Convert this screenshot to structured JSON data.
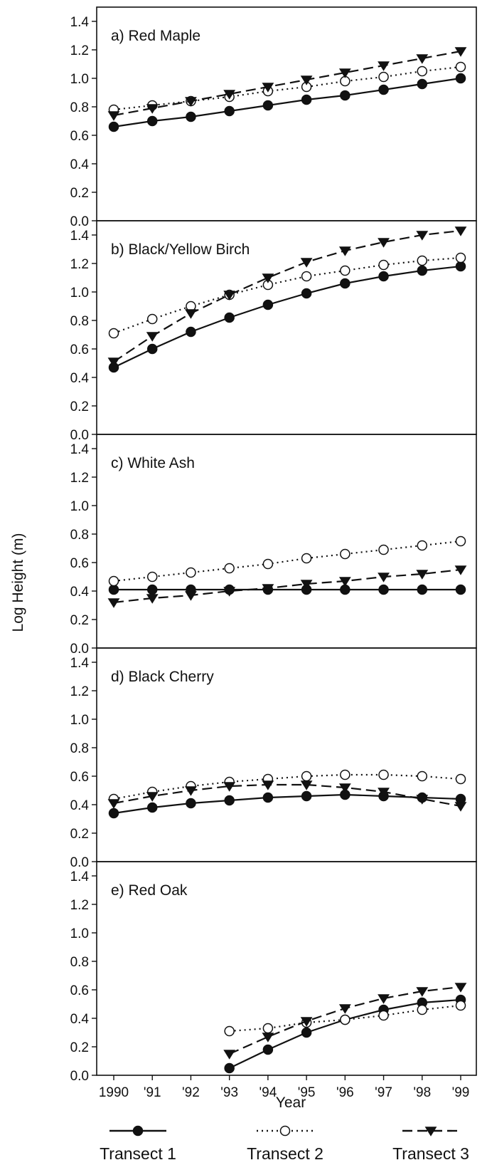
{
  "chart_data": {
    "type": "line",
    "ylabel": "Log Height (m)",
    "xlabel": "Year",
    "x": [
      "1990",
      "'91",
      "'92",
      "'93",
      "'94",
      "'95",
      "'96",
      "'97",
      "'98",
      "'99"
    ],
    "yticks": [
      "0.0",
      "0.2",
      "0.4",
      "0.6",
      "0.8",
      "1.0",
      "1.2",
      "1.4"
    ],
    "ylim": [
      0,
      1.5
    ],
    "legend": {
      "placement": "bottom",
      "entries": [
        "Transect 1",
        "Transect 2",
        "Transect 3"
      ]
    },
    "series_styles": [
      {
        "stroke": "#111111",
        "dash": "solid",
        "marker": "filled-circle"
      },
      {
        "stroke": "#111111",
        "dash": "dotted",
        "marker": "open-circle"
      },
      {
        "stroke": "#111111",
        "dash": "dashed",
        "marker": "filled-triangle-down"
      }
    ],
    "panels": [
      {
        "title": "a)  Red Maple",
        "series": [
          {
            "name": "Transect 1",
            "values": [
              0.66,
              0.7,
              0.73,
              0.77,
              0.81,
              0.85,
              0.88,
              0.92,
              0.96,
              1.0
            ]
          },
          {
            "name": "Transect 2",
            "values": [
              0.78,
              0.81,
              0.84,
              0.87,
              0.91,
              0.94,
              0.98,
              1.01,
              1.05,
              1.08
            ]
          },
          {
            "name": "Transect 3",
            "values": [
              0.74,
              0.79,
              0.84,
              0.89,
              0.94,
              0.99,
              1.04,
              1.09,
              1.14,
              1.19
            ]
          }
        ]
      },
      {
        "title": "b)  Black/Yellow Birch",
        "series": [
          {
            "name": "Transect 1",
            "values": [
              0.47,
              0.6,
              0.72,
              0.82,
              0.91,
              0.99,
              1.06,
              1.11,
              1.15,
              1.18
            ]
          },
          {
            "name": "Transect 2",
            "values": [
              0.71,
              0.81,
              0.9,
              0.98,
              1.05,
              1.11,
              1.15,
              1.19,
              1.22,
              1.24
            ]
          },
          {
            "name": "Transect 3",
            "values": [
              0.51,
              0.69,
              0.85,
              0.98,
              1.1,
              1.21,
              1.29,
              1.35,
              1.4,
              1.43
            ]
          }
        ]
      },
      {
        "title": "c)  White Ash",
        "series": [
          {
            "name": "Transect 1",
            "values": [
              0.41,
              0.41,
              0.41,
              0.41,
              0.41,
              0.41,
              0.41,
              0.41,
              0.41,
              0.41
            ]
          },
          {
            "name": "Transect 2",
            "values": [
              0.47,
              0.5,
              0.53,
              0.56,
              0.59,
              0.63,
              0.66,
              0.69,
              0.72,
              0.75
            ]
          },
          {
            "name": "Transect 3",
            "values": [
              0.32,
              0.35,
              0.37,
              0.4,
              0.42,
              0.45,
              0.47,
              0.5,
              0.52,
              0.55
            ]
          }
        ]
      },
      {
        "title": "d)  Black Cherry",
        "series": [
          {
            "name": "Transect 1",
            "values": [
              0.34,
              0.38,
              0.41,
              0.43,
              0.45,
              0.46,
              0.47,
              0.46,
              0.45,
              0.44
            ]
          },
          {
            "name": "Transect 2",
            "values": [
              0.44,
              0.49,
              0.53,
              0.56,
              0.58,
              0.6,
              0.61,
              0.61,
              0.6,
              0.58
            ]
          },
          {
            "name": "Transect 3",
            "values": [
              0.41,
              0.46,
              0.5,
              0.53,
              0.54,
              0.54,
              0.52,
              0.49,
              0.44,
              0.39
            ]
          }
        ]
      },
      {
        "title": "e)  Red Oak",
        "series": [
          {
            "name": "Transect 1",
            "values": [
              null,
              null,
              null,
              0.05,
              0.18,
              0.3,
              0.39,
              0.46,
              0.51,
              0.53
            ]
          },
          {
            "name": "Transect 2",
            "values": [
              null,
              null,
              null,
              0.31,
              0.33,
              0.37,
              0.39,
              0.42,
              0.46,
              0.49
            ]
          },
          {
            "name": "Transect 3",
            "values": [
              null,
              null,
              null,
              0.15,
              0.27,
              0.38,
              0.47,
              0.54,
              0.59,
              0.62
            ]
          }
        ]
      }
    ]
  }
}
